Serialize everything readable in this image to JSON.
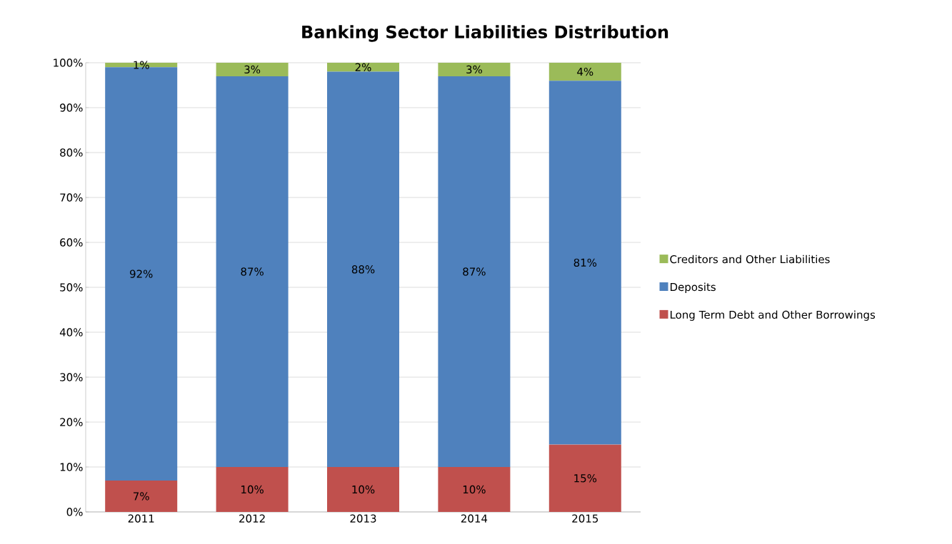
{
  "chart_data": {
    "type": "bar",
    "title": "Banking Sector Liabilities Distribution",
    "stacked": true,
    "categories": [
      "2011",
      "2012",
      "2013",
      "2014",
      "2015"
    ],
    "series": [
      {
        "name": "Long Term Debt and Other Borrowings",
        "color": "#c0504d",
        "values": [
          7,
          10,
          10,
          10,
          15
        ],
        "value_labels": [
          "7%",
          "10%",
          "10%",
          "10%",
          "15%"
        ]
      },
      {
        "name": "Deposits",
        "color": "#4f81bd",
        "values": [
          92,
          87,
          88,
          87,
          81
        ],
        "value_labels": [
          "92%",
          "87%",
          "88%",
          "87%",
          "81%"
        ]
      },
      {
        "name": "Creditors and Other Liabilities",
        "color": "#9bbb59",
        "values": [
          1,
          3,
          2,
          3,
          4
        ],
        "value_labels": [
          "1%",
          "3%",
          "2%",
          "3%",
          "4%"
        ]
      }
    ],
    "ylim": [
      0,
      100
    ],
    "yticks": [
      {
        "value": 0,
        "label": "0%"
      },
      {
        "value": 10,
        "label": "10%"
      },
      {
        "value": 20,
        "label": "20%"
      },
      {
        "value": 30,
        "label": "30%"
      },
      {
        "value": 40,
        "label": "40%"
      },
      {
        "value": 50,
        "label": "50%"
      },
      {
        "value": 60,
        "label": "60%"
      },
      {
        "value": 70,
        "label": "70%"
      },
      {
        "value": 80,
        "label": "80%"
      },
      {
        "value": 90,
        "label": "90%"
      },
      {
        "value": 100,
        "label": "100%"
      }
    ],
    "grid": "y",
    "legend": "right"
  }
}
